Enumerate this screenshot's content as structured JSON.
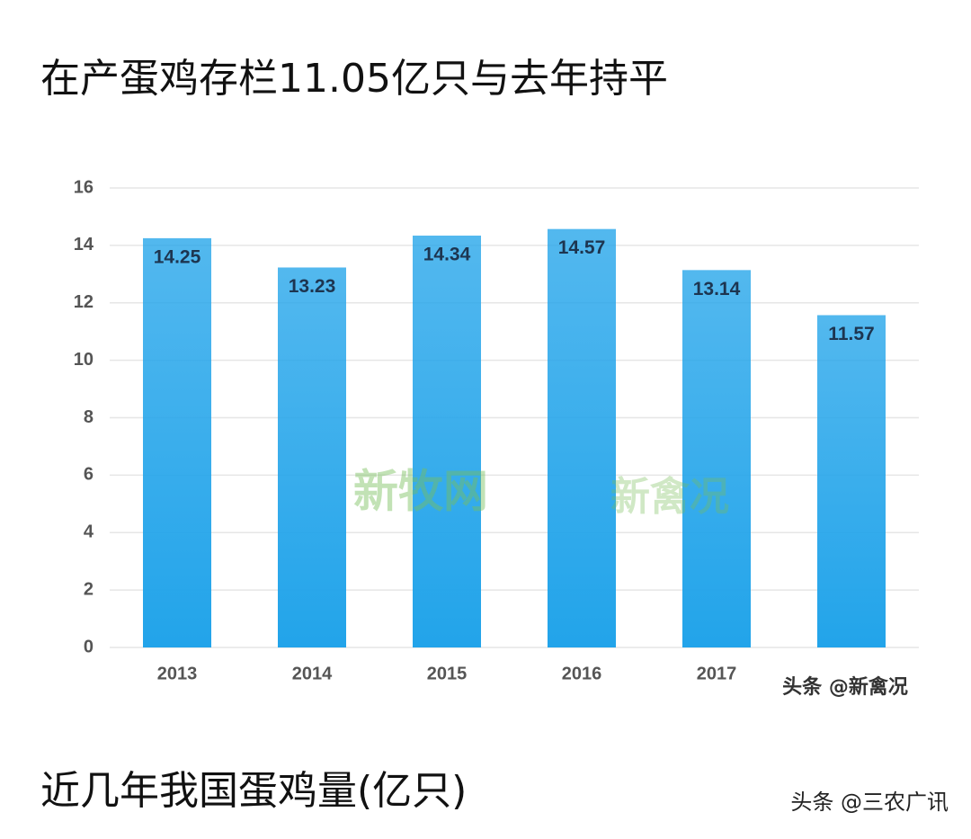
{
  "chart_data": {
    "type": "bar",
    "title": "在产蛋鸡存栏11.05亿只与去年持平",
    "caption": "近几年我国蛋鸡量(亿只)",
    "categories": [
      "2013",
      "2014",
      "2015",
      "2016",
      "2017",
      null
    ],
    "values": [
      14.25,
      13.23,
      14.34,
      14.57,
      13.14,
      11.57
    ],
    "color": "#22a4ea",
    "ylim": [
      0,
      16
    ],
    "yticks": [
      0,
      2,
      4,
      6,
      8,
      10,
      12,
      14,
      16
    ],
    "grid": true,
    "watermarks": [
      "新牧网",
      "新禽况",
      "头条 @新禽况"
    ],
    "source": "头条 @三农广讯"
  }
}
